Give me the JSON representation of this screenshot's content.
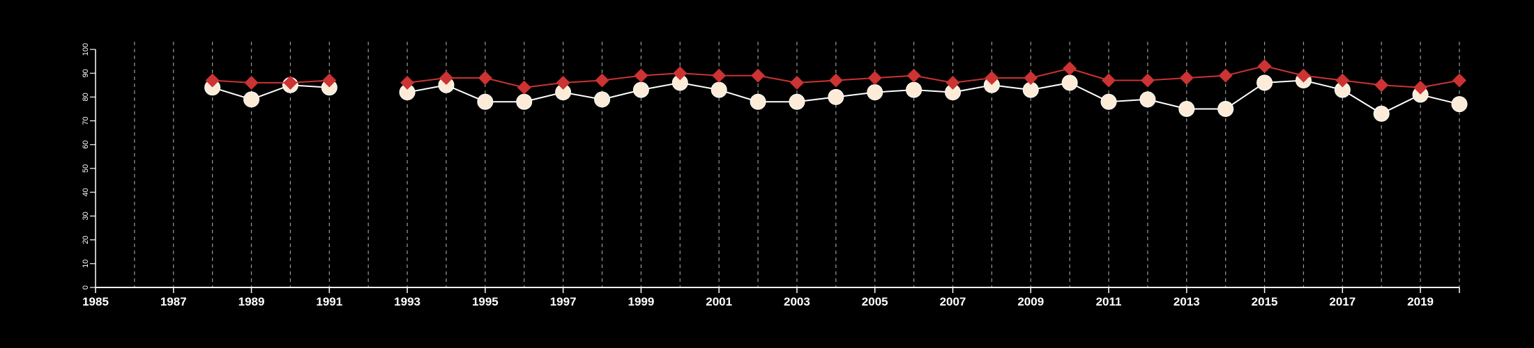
{
  "chart_data": {
    "type": "line",
    "title": "",
    "xlabel": "",
    "ylabel": "",
    "xlim": [
      1985,
      2020
    ],
    "ylim": [
      0,
      100
    ],
    "y_ticks": [
      0,
      10,
      20,
      30,
      40,
      50,
      60,
      70,
      80,
      90,
      100
    ],
    "x_tick_labels": [
      "1985",
      "1987",
      "1989",
      "1991",
      "1993",
      "1995",
      "1997",
      "1999",
      "2001",
      "2003",
      "2005",
      "2007",
      "2009",
      "2011",
      "2013",
      "2015",
      "2017",
      "2019"
    ],
    "x_tick_values": [
      1985,
      1987,
      1989,
      1991,
      1993,
      1995,
      1997,
      1999,
      2001,
      2003,
      2005,
      2007,
      2009,
      2011,
      2013,
      2015,
      2017,
      2019
    ],
    "vertical_gridlines": "dashed, every year",
    "legend": "none",
    "background": "#000000",
    "x": [
      1988,
      1989,
      1990,
      1991,
      1992,
      1993,
      1994,
      1995,
      1996,
      1997,
      1998,
      1999,
      2000,
      2001,
      2002,
      2003,
      2004,
      2005,
      2006,
      2007,
      2008,
      2009,
      2010,
      2011,
      2012,
      2013,
      2014,
      2015,
      2016,
      2017,
      2018,
      2019,
      2020
    ],
    "series": [
      {
        "marker": "diamond",
        "color": "#cc3333",
        "values": [
          87,
          86,
          86,
          87,
          null,
          86,
          88,
          88,
          84,
          86,
          87,
          89,
          90,
          89,
          89,
          86,
          87,
          88,
          89,
          86,
          88,
          88,
          92,
          87,
          87,
          88,
          89,
          93,
          89,
          87,
          85,
          84,
          87
        ]
      },
      {
        "marker": "circle",
        "color": "#fcebd6",
        "line_color": "#ffffff",
        "values": [
          84,
          79,
          85,
          84,
          null,
          82,
          85,
          78,
          78,
          82,
          79,
          83,
          86,
          83,
          78,
          78,
          80,
          82,
          83,
          82,
          85,
          83,
          86,
          78,
          79,
          75,
          75,
          86,
          87,
          83,
          73,
          81,
          77
        ]
      }
    ]
  }
}
